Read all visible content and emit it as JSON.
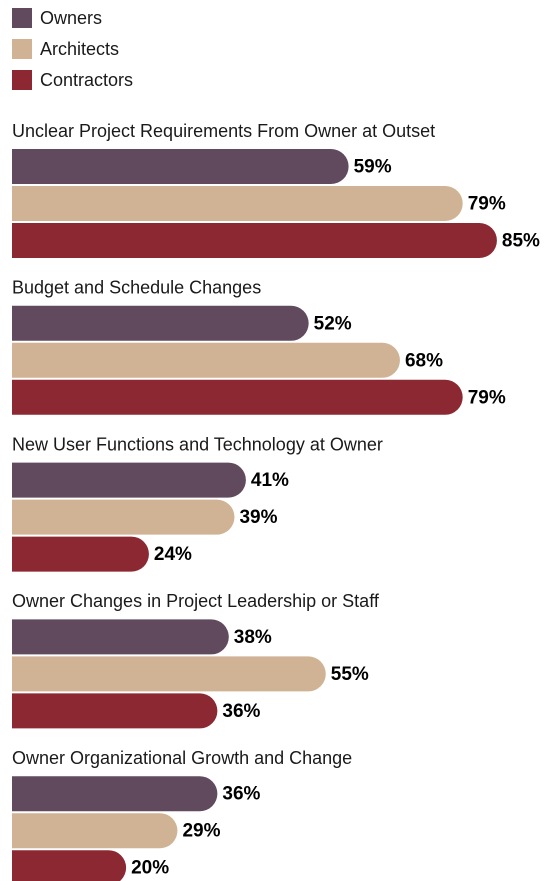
{
  "chart_data": {
    "type": "bar",
    "orientation": "horizontal",
    "categories": [
      "Unclear Project Requirements From Owner at Outset",
      "Budget and Schedule Changes",
      "New User Functions and Technology at Owner",
      "Owner Changes in Project Leadership or Staff",
      "Owner Organizational Growth and Change"
    ],
    "series": [
      {
        "name": "Owners",
        "color": "#614a5e",
        "values": [
          59,
          52,
          41,
          38,
          36
        ],
        "value_labels": [
          "59%",
          "52%",
          "41%",
          "38%",
          "36%"
        ]
      },
      {
        "name": "Architects",
        "color": "#d0b394",
        "values": [
          79,
          68,
          39,
          55,
          29
        ],
        "value_labels": [
          "79%",
          "68%",
          "39%",
          "55%",
          "29%"
        ]
      },
      {
        "name": "Contractors",
        "color": "#8b2832",
        "values": [
          85,
          79,
          24,
          36,
          20
        ],
        "value_labels": [
          "85%",
          "79%",
          "24%",
          "36%",
          "20%"
        ]
      }
    ],
    "legend": "top-left"
  }
}
